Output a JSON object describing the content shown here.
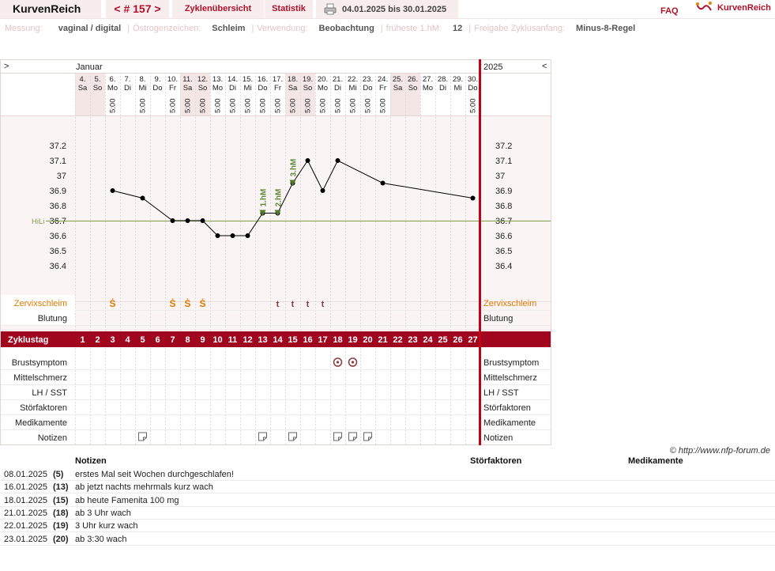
{
  "header": {
    "brand": "KurvenReich",
    "cycle_nav": "< # 157 >",
    "nav_cycle_overview": "Zyklenübersicht",
    "nav_statistics": "Statistik",
    "date_range": "04.01.2025 bis 30.01.2025",
    "faq": "FAQ",
    "logo_text": "KurvenReich"
  },
  "meta": [
    {
      "key": "Messung:",
      "value": "vaginal / digital"
    },
    {
      "key": "Östrogenzeichen:",
      "value": "Schleim"
    },
    {
      "key": "Verwendung:",
      "value": "Beobachtung"
    },
    {
      "key": "früheste 1.hM:",
      "value": "12"
    },
    {
      "key": "Freigabe Zyklusanfang:",
      "value": "Minus-8-Regel"
    }
  ],
  "chart_data": {
    "type": "line",
    "month_label": "Januar",
    "year_label": "2025",
    "left_toggle": ">",
    "right_toggle": "<",
    "days": [
      {
        "date": "4.",
        "wd": "Sa",
        "time": "",
        "weekend": true
      },
      {
        "date": "5.",
        "wd": "So",
        "time": "",
        "weekend": true
      },
      {
        "date": "6.",
        "wd": "Mo",
        "time": "5:00",
        "weekend": false
      },
      {
        "date": "7.",
        "wd": "Di",
        "time": "",
        "weekend": false
      },
      {
        "date": "8.",
        "wd": "Mi",
        "time": "5:00",
        "weekend": false
      },
      {
        "date": "9.",
        "wd": "Do",
        "time": "",
        "weekend": false
      },
      {
        "date": "10.",
        "wd": "Fr",
        "time": "5:00",
        "weekend": false
      },
      {
        "date": "11.",
        "wd": "Sa",
        "time": "5:00",
        "weekend": true
      },
      {
        "date": "12.",
        "wd": "So",
        "time": "5:00",
        "weekend": true
      },
      {
        "date": "13.",
        "wd": "Mo",
        "time": "5:00",
        "weekend": false
      },
      {
        "date": "14.",
        "wd": "Di",
        "time": "5:00",
        "weekend": false
      },
      {
        "date": "15.",
        "wd": "Mi",
        "time": "5:00",
        "weekend": false
      },
      {
        "date": "16.",
        "wd": "Do",
        "time": "5:00",
        "weekend": false
      },
      {
        "date": "17.",
        "wd": "Fr",
        "time": "5:00",
        "weekend": false
      },
      {
        "date": "18.",
        "wd": "Sa",
        "time": "5:00",
        "weekend": true
      },
      {
        "date": "19.",
        "wd": "So",
        "time": "5:00",
        "weekend": true
      },
      {
        "date": "20.",
        "wd": "Mo",
        "time": "5:00",
        "weekend": false
      },
      {
        "date": "21.",
        "wd": "Di",
        "time": "5:00",
        "weekend": false
      },
      {
        "date": "22.",
        "wd": "Mi",
        "time": "5:00",
        "weekend": false
      },
      {
        "date": "23.",
        "wd": "Do",
        "time": "5:00",
        "weekend": false
      },
      {
        "date": "24.",
        "wd": "Fr",
        "time": "5:00",
        "weekend": false
      },
      {
        "date": "25.",
        "wd": "Sa",
        "time": "",
        "weekend": true
      },
      {
        "date": "26.",
        "wd": "So",
        "time": "",
        "weekend": true
      },
      {
        "date": "27.",
        "wd": "Mo",
        "time": "",
        "weekend": false
      },
      {
        "date": "28.",
        "wd": "Di",
        "time": "",
        "weekend": false
      },
      {
        "date": "29.",
        "wd": "Mi",
        "time": "",
        "weekend": false
      },
      {
        "date": "30.",
        "wd": "Do",
        "time": "5:00",
        "weekend": false
      }
    ],
    "y_ticks": [
      "37.2",
      "37.1",
      "37",
      "36.9",
      "36.8",
      "36.7",
      "36.6",
      "36.5",
      "36.4"
    ],
    "ylim": [
      36.4,
      37.2
    ],
    "hilfslinie_label": "HiLi",
    "hilfslinie_value": 36.7,
    "temperatures": [
      {
        "cycle_day": 3,
        "value": 36.9
      },
      {
        "cycle_day": 5,
        "value": 36.85
      },
      {
        "cycle_day": 7,
        "value": 36.7
      },
      {
        "cycle_day": 8,
        "value": 36.7
      },
      {
        "cycle_day": 9,
        "value": 36.7
      },
      {
        "cycle_day": 10,
        "value": 36.6
      },
      {
        "cycle_day": 11,
        "value": 36.6
      },
      {
        "cycle_day": 12,
        "value": 36.6
      },
      {
        "cycle_day": 13,
        "value": 36.75
      },
      {
        "cycle_day": 14,
        "value": 36.75
      },
      {
        "cycle_day": 15,
        "value": 36.95
      },
      {
        "cycle_day": 16,
        "value": 37.1
      },
      {
        "cycle_day": 17,
        "value": 36.9
      },
      {
        "cycle_day": 18,
        "value": 37.1
      },
      {
        "cycle_day": 21,
        "value": 36.95
      },
      {
        "cycle_day": 27,
        "value": 36.85
      }
    ],
    "high_markers": [
      {
        "cycle_day": 13,
        "label": "1.hM"
      },
      {
        "cycle_day": 14,
        "label": "2.hM"
      },
      {
        "cycle_day": 15,
        "label": "3.hM"
      }
    ],
    "rows_top": [
      {
        "label": "Zervixschleim",
        "highlight": true,
        "marks": [
          {
            "cycle_day": 3,
            "sym": "Ṡ"
          },
          {
            "cycle_day": 7,
            "sym": "Ṡ"
          },
          {
            "cycle_day": 8,
            "sym": "Ṡ"
          },
          {
            "cycle_day": 9,
            "sym": "Ṡ"
          },
          {
            "cycle_day": 14,
            "sym": "t"
          },
          {
            "cycle_day": 15,
            "sym": "t"
          },
          {
            "cycle_day": 16,
            "sym": "t"
          },
          {
            "cycle_day": 17,
            "sym": "t"
          }
        ]
      },
      {
        "label": "Blutung",
        "highlight": false,
        "marks": []
      }
    ],
    "zyklustag_label": "Zyklustag",
    "cycle_days": [
      "1",
      "2",
      "3",
      "4",
      "5",
      "6",
      "7",
      "8",
      "9",
      "10",
      "11",
      "12",
      "13",
      "14",
      "15",
      "16",
      "17",
      "18",
      "19",
      "20",
      "21",
      "22",
      "23",
      "24",
      "25",
      "26",
      "27"
    ],
    "rows_bottom": [
      {
        "label": "Brustsymptom",
        "marks": [
          18,
          19
        ],
        "kind": "breast"
      },
      {
        "label": "Mittelschmerz",
        "marks": [],
        "kind": ""
      },
      {
        "label": "LH / SST",
        "marks": [],
        "kind": ""
      },
      {
        "label": "Störfaktoren",
        "marks": [],
        "kind": ""
      },
      {
        "label": "Medikamente",
        "marks": [],
        "kind": ""
      },
      {
        "label": "Notizen",
        "marks": [
          5,
          13,
          15,
          18,
          19,
          20
        ],
        "kind": "note"
      }
    ]
  },
  "copyright": "© http://www.nfp-forum.de",
  "notes_table": {
    "headers": [
      "Notizen",
      "Störfaktoren",
      "Medikamente"
    ],
    "rows": [
      {
        "date": "08.01.2025",
        "cd": "(5)",
        "text": "erstes Mal seit Wochen durchgeschlafen!"
      },
      {
        "date": "16.01.2025",
        "cd": "(13)",
        "text": "ab jetzt nachts mehrmals kurz wach"
      },
      {
        "date": "18.01.2025",
        "cd": "(15)",
        "text": "ab heute Famenita 100 mg"
      },
      {
        "date": "21.01.2025",
        "cd": "(18)",
        "text": "ab 3 Uhr wach"
      },
      {
        "date": "22.01.2025",
        "cd": "(19)",
        "text": "3 Uhr kurz wach"
      },
      {
        "date": "23.01.2025",
        "cd": "(20)",
        "text": "ab 3:30 wach"
      }
    ]
  }
}
